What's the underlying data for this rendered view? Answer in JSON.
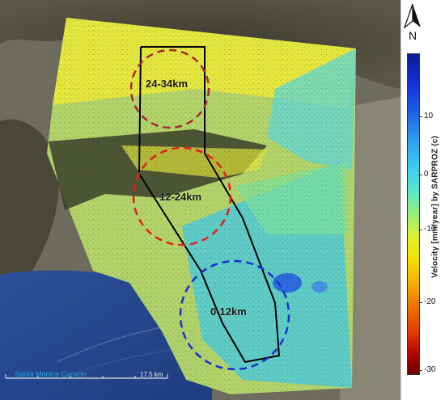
{
  "map": {
    "zones": [
      {
        "id": "zone-24-34",
        "label": "24-34km",
        "color": "#a52a2a"
      },
      {
        "id": "zone-12-24",
        "label": "12-24km",
        "color": "#e02020"
      },
      {
        "id": "zone-0-12",
        "label": "0-12km",
        "color": "#1a2fd0"
      }
    ],
    "place_label": "Santa Monica Canyon",
    "scale_bar_label": "17.5 km",
    "basemap": "satellite imagery",
    "overlay": "InSAR velocity point cloud"
  },
  "north_arrow": {
    "label": "N",
    "icon": "north-arrow-icon"
  },
  "colorbar": {
    "title": "Velocity [mm/year]  by  SARPROZ (c)",
    "ticks": [
      "10",
      "0",
      "-10",
      "-20",
      "-30"
    ],
    "range": [
      -30,
      15
    ],
    "colors": {
      "top": "#0a1a9a",
      "middle": "#96ee7a",
      "bottom": "#6a0000"
    }
  }
}
